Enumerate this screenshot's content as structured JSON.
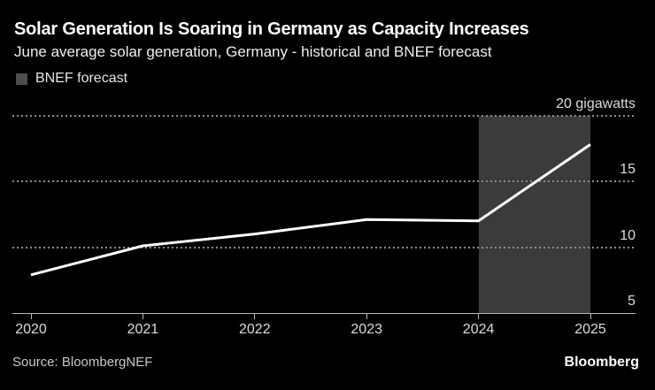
{
  "header": {
    "title": "Solar Generation Is Soaring in Germany as Capacity Increases",
    "subtitle": "June average solar generation, Germany - historical and BNEF forecast"
  },
  "legend": {
    "items": [
      {
        "label": "BNEF forecast",
        "swatch_color": "#4d4d4d"
      }
    ]
  },
  "chart_data": {
    "type": "line",
    "title": "June average solar generation, Germany - historical and BNEF forecast",
    "unit": "gigawatts",
    "x": [
      2020,
      2021,
      2022,
      2023,
      2024,
      2025
    ],
    "series": [
      {
        "name": "June average solar generation (GW)",
        "values": [
          7.9,
          10.1,
          11.0,
          12.1,
          12.0,
          17.8
        ]
      }
    ],
    "ylim": [
      5,
      20
    ],
    "y_ticks": [
      5,
      10,
      15,
      20
    ],
    "y_top_label": "20 gigawatts",
    "grid": "horizontal-dotted",
    "legend_position": "top-left",
    "forecast_span": {
      "from": 2024,
      "to": 2025,
      "label": "BNEF forecast"
    },
    "line_color": "#ffffff",
    "band_color": "#3b3b3b"
  },
  "footer": {
    "source": "Source: BloombergNEF",
    "logo": "Bloomberg"
  }
}
